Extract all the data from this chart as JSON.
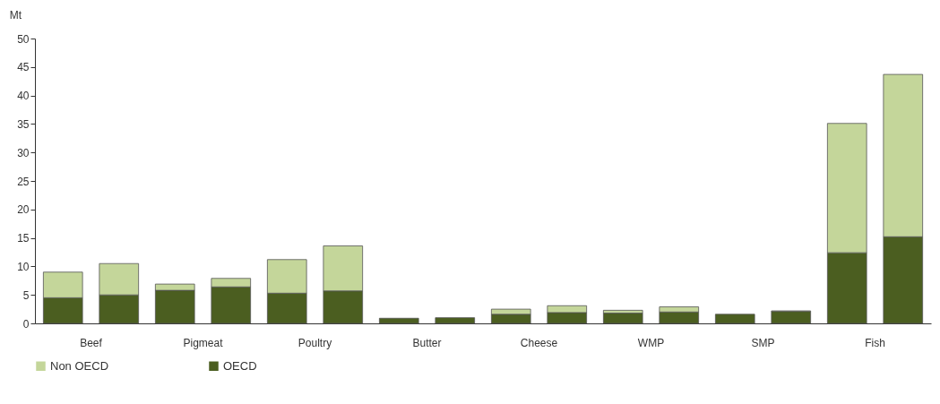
{
  "chart_data": {
    "type": "bar",
    "stacked": true,
    "ylabel": "Mt",
    "categories": [
      "Beef",
      null,
      "Pigmeat",
      null,
      "Poultry",
      null,
      "Butter",
      null,
      "Cheese",
      null,
      "WMP",
      null,
      "SMP",
      null,
      "Fish",
      null
    ],
    "series": [
      {
        "name": "OECD",
        "color": "#4b5e20",
        "values": [
          4.5,
          5.0,
          5.8,
          6.4,
          5.3,
          5.7,
          0.9,
          1.0,
          1.6,
          1.9,
          1.8,
          2.0,
          1.6,
          2.1,
          12.4,
          15.2
        ]
      },
      {
        "name": "Non OECD",
        "color": "#c4d69a",
        "values": [
          4.5,
          5.5,
          1.1,
          1.5,
          5.9,
          7.9,
          null,
          null,
          0.9,
          1.2,
          0.5,
          0.9,
          null,
          0.1,
          22.7,
          28.5
        ]
      }
    ],
    "ylim": [
      0,
      50
    ],
    "yticks": [
      0,
      5,
      10,
      15,
      20,
      25,
      30,
      35,
      40,
      45,
      50
    ],
    "grid": false,
    "legend": "bottom left"
  }
}
